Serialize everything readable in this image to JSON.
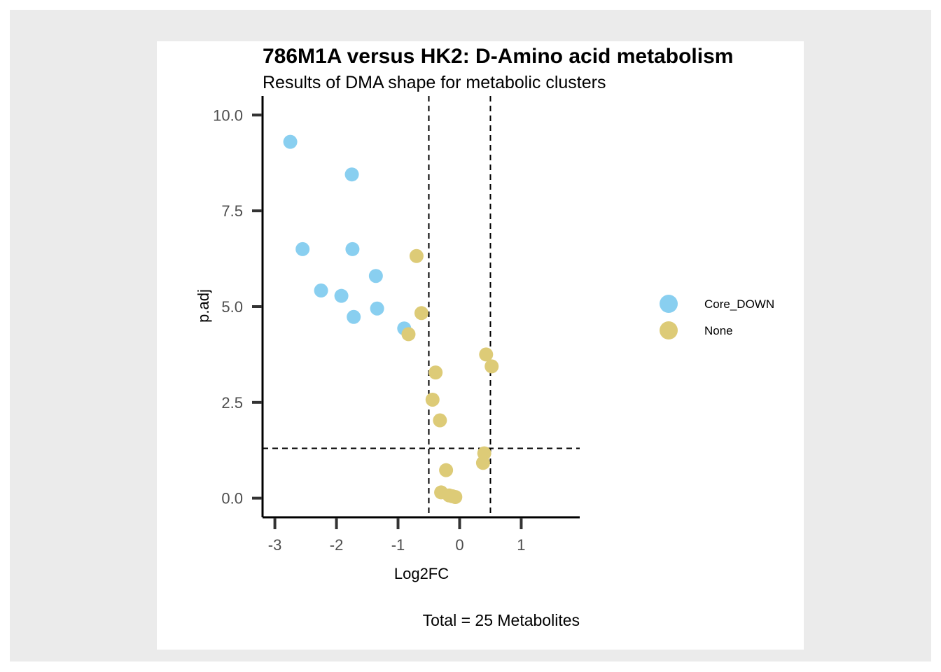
{
  "chart_data": {
    "type": "scatter",
    "title": "786M1A versus HK2: D-Amino acid metabolism",
    "subtitle": "Results of DMA shape for metabolic clusters",
    "xlabel": "Log2FC",
    "ylabel": "p.adj",
    "caption": "Total = 25 Metabolites",
    "xlim": [
      -3.2,
      1.95
    ],
    "ylim": [
      -0.5,
      10.5
    ],
    "xticks": [
      -3,
      -2,
      -1,
      0,
      1
    ],
    "xtick_labels": [
      "-3",
      "-2",
      "-1",
      "0",
      "1"
    ],
    "yticks": [
      0,
      2.5,
      5,
      7.5,
      10
    ],
    "ytick_labels": [
      "0.0",
      "2.5",
      "5.0",
      "7.5",
      "10.0"
    ],
    "vlines": [
      -0.5,
      0.5
    ],
    "hlines": [
      1.3
    ],
    "grid": false,
    "legend_position": "right",
    "series": [
      {
        "name": "Core_DOWN",
        "color": "#89CFF0",
        "points": [
          {
            "x": -2.75,
            "y": 9.3
          },
          {
            "x": -1.75,
            "y": 8.45
          },
          {
            "x": -2.55,
            "y": 6.5
          },
          {
            "x": -1.74,
            "y": 6.5
          },
          {
            "x": -1.36,
            "y": 5.8
          },
          {
            "x": -2.25,
            "y": 5.42
          },
          {
            "x": -1.92,
            "y": 5.28
          },
          {
            "x": -1.34,
            "y": 4.95
          },
          {
            "x": -1.72,
            "y": 4.73
          },
          {
            "x": -0.9,
            "y": 4.43
          }
        ]
      },
      {
        "name": "None",
        "color": "#DDCB77",
        "points": [
          {
            "x": -0.7,
            "y": 6.32
          },
          {
            "x": -0.62,
            "y": 4.83
          },
          {
            "x": -0.83,
            "y": 4.28
          },
          {
            "x": 0.43,
            "y": 3.75
          },
          {
            "x": 0.52,
            "y": 3.44
          },
          {
            "x": -0.39,
            "y": 3.28
          },
          {
            "x": -0.44,
            "y": 2.57
          },
          {
            "x": -0.32,
            "y": 2.03
          },
          {
            "x": 0.4,
            "y": 1.17
          },
          {
            "x": 0.38,
            "y": 0.92
          },
          {
            "x": -0.22,
            "y": 0.73
          },
          {
            "x": -0.3,
            "y": 0.15
          },
          {
            "x": -0.17,
            "y": 0.07
          },
          {
            "x": -0.07,
            "y": 0.03
          },
          {
            "x": -0.12,
            "y": 0.05
          }
        ]
      }
    ]
  }
}
